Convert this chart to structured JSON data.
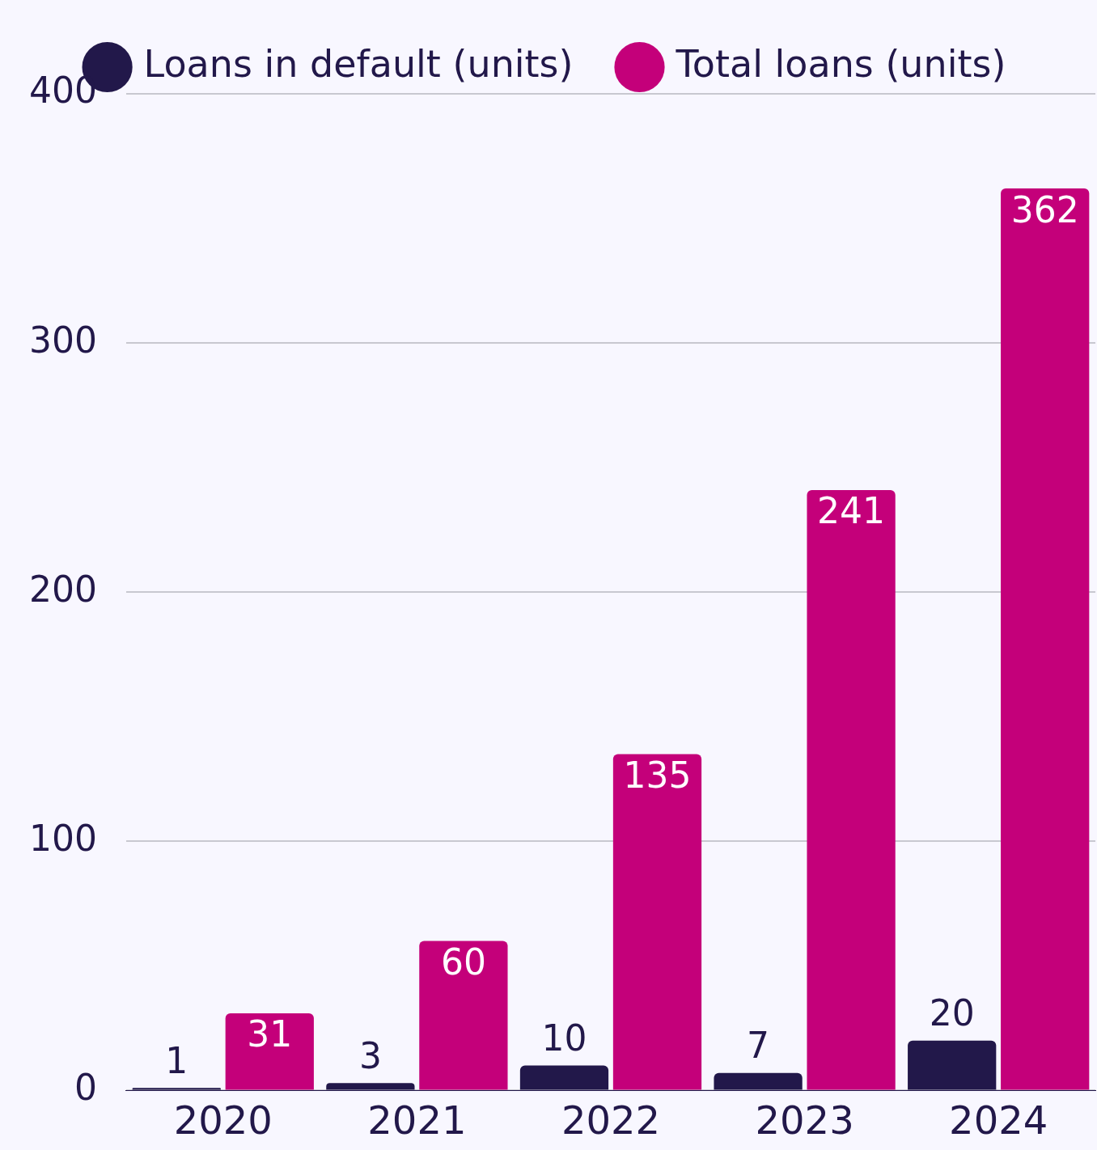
{
  "chart_data": {
    "type": "bar",
    "categories": [
      "2020",
      "2021",
      "2022",
      "2023",
      "2024"
    ],
    "series": [
      {
        "name": "Loans in default (units)",
        "color": "#22184a",
        "values": [
          1,
          3,
          10,
          7,
          20
        ]
      },
      {
        "name": "Total loans (units)",
        "color": "#c4007a",
        "values": [
          31,
          60,
          135,
          241,
          362
        ]
      }
    ],
    "ylim": [
      0,
      400
    ],
    "yticks": [
      0,
      100,
      200,
      300,
      400
    ],
    "grid": "y",
    "legend": "top",
    "data_labels": true
  }
}
